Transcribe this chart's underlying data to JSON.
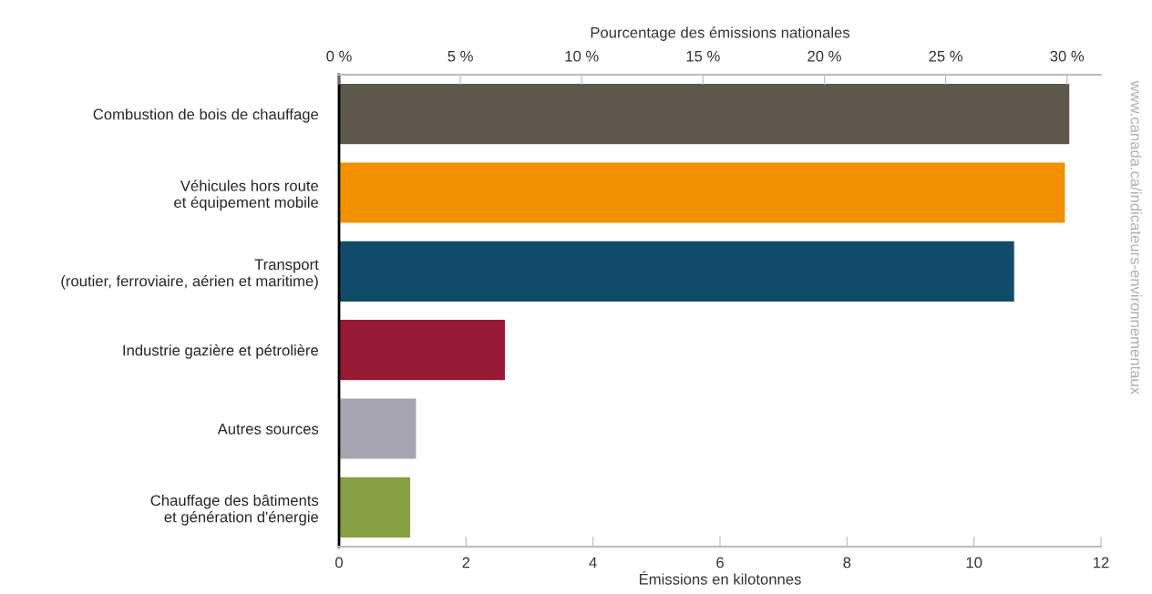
{
  "chart_data": {
    "type": "bar",
    "orientation": "horizontal",
    "xlabel": "Émissions en kilotonnes",
    "x2label": "Pourcentage des émissions nationales",
    "categories": [
      "Combustion de bois de chauffage",
      "Véhicules hors route\net équipement mobile",
      "Transport\n(routier, ferroviaire, aérien et maritime)",
      "Industrie gazière et pétrolière",
      "Autres sources",
      "Chauffage des bâtiments\net génération d'énergie"
    ],
    "values": [
      11.51,
      11.44,
      10.64,
      2.62,
      1.22,
      1.13
    ],
    "colors": [
      "#5e574c",
      "#f29100",
      "#114b6a",
      "#961936",
      "#a6a4b0",
      "#86a043"
    ],
    "xlim": [
      0,
      12
    ],
    "xticks": [
      0,
      2,
      4,
      6,
      8,
      10,
      12
    ],
    "x2lim": [
      0,
      31.4
    ],
    "x2ticks": [
      {
        "value": 0,
        "label": "0 %"
      },
      {
        "value": 5,
        "label": "5 %"
      },
      {
        "value": 10,
        "label": "10 %"
      },
      {
        "value": 15,
        "label": "15 %"
      },
      {
        "value": 20,
        "label": "20 %"
      },
      {
        "value": 25,
        "label": "25 %"
      },
      {
        "value": 30,
        "label": "30 %"
      }
    ],
    "grid": false,
    "legend": false,
    "annotations": [
      "www.canada.ca/indicateurs-environnementaux"
    ]
  }
}
